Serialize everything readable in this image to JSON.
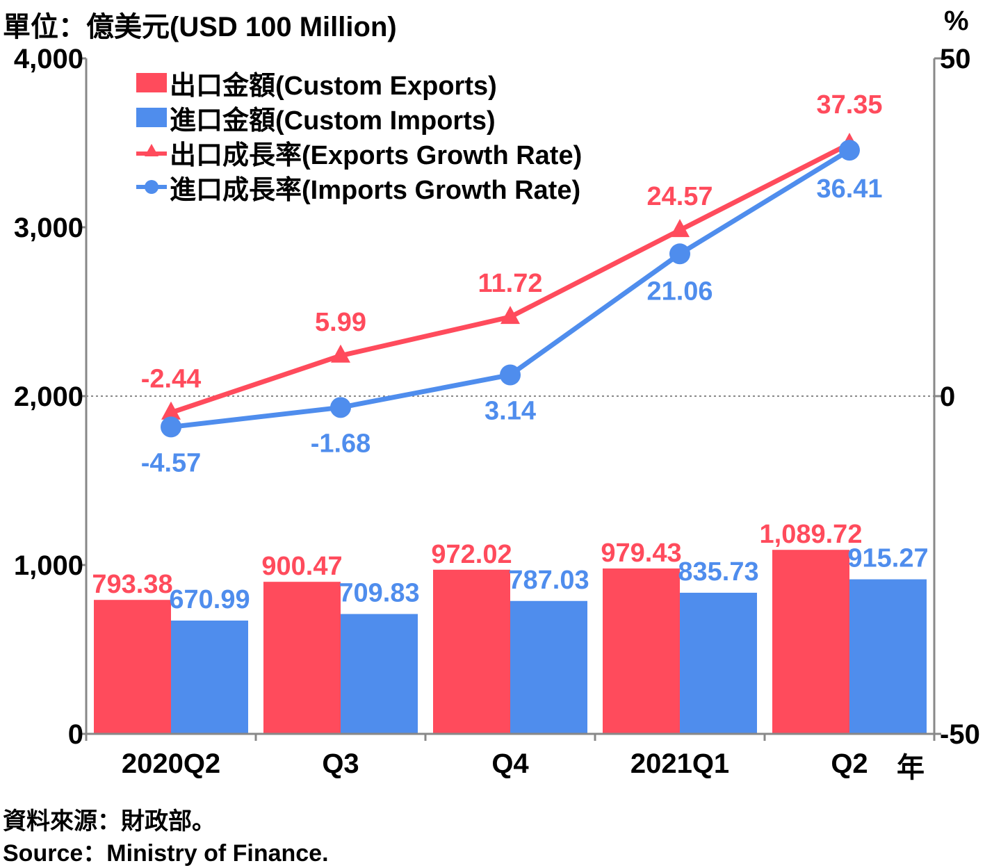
{
  "header": {
    "left_unit": "單位：億美元(USD 100 Million)",
    "right_unit": "%",
    "year_mark": "年"
  },
  "legend": [
    {
      "label": "出口金額(Custom Exports)",
      "key": "bar",
      "color": "#ff4b5c"
    },
    {
      "label": "進口金額(Custom Imports)",
      "key": "bar",
      "color": "#4f8ded"
    },
    {
      "label": "出口成長率(Exports Growth Rate)",
      "key": "triangle-line",
      "color": "#ff4b5c"
    },
    {
      "label": "進口成長率(Imports Growth Rate)",
      "key": "circle-line",
      "color": "#4f8ded"
    }
  ],
  "footer": {
    "source_zh": "資料來源：財政部。",
    "source_en": "Source：Ministry of Finance."
  },
  "chart_data": {
    "type": "bar",
    "categories": [
      "2020Q2",
      "Q3",
      "Q4",
      "2021Q1",
      "Q2"
    ],
    "y_left": {
      "ticks": [
        "0",
        "1,000",
        "2,000",
        "3,000",
        "4,000"
      ],
      "range": [
        0,
        4000
      ]
    },
    "y_right": {
      "ticks": [
        "-50",
        "0",
        "50"
      ],
      "range": [
        -50,
        50
      ]
    },
    "bars": [
      {
        "values": [
          793.38,
          900.47,
          972.02,
          979.43,
          1089.72
        ],
        "labels": [
          "793.38",
          "900.47",
          "972.02",
          "979.43",
          "1,089.72"
        ],
        "color": "#ff4b5c"
      },
      {
        "values": [
          670.99,
          709.83,
          787.03,
          835.73,
          915.27
        ],
        "labels": [
          "670.99",
          "709.83",
          "787.03",
          "835.73",
          "915.27"
        ],
        "color": "#4f8ded"
      }
    ],
    "lines": [
      {
        "values": [
          -2.44,
          5.99,
          11.72,
          24.57,
          37.35
        ],
        "labels": [
          "-2.44",
          "5.99",
          "11.72",
          "24.57",
          "37.35"
        ],
        "color": "#ff4b5c",
        "marker": "triangle",
        "axis": "right"
      },
      {
        "values": [
          -4.57,
          -1.68,
          3.14,
          21.06,
          36.41
        ],
        "labels": [
          "-4.57",
          "-1.68",
          "3.14",
          "21.06",
          "36.41"
        ],
        "color": "#4f8ded",
        "marker": "circle",
        "axis": "right"
      }
    ],
    "reference_line": {
      "axis": "right",
      "value": 0,
      "style": "dotted"
    }
  }
}
